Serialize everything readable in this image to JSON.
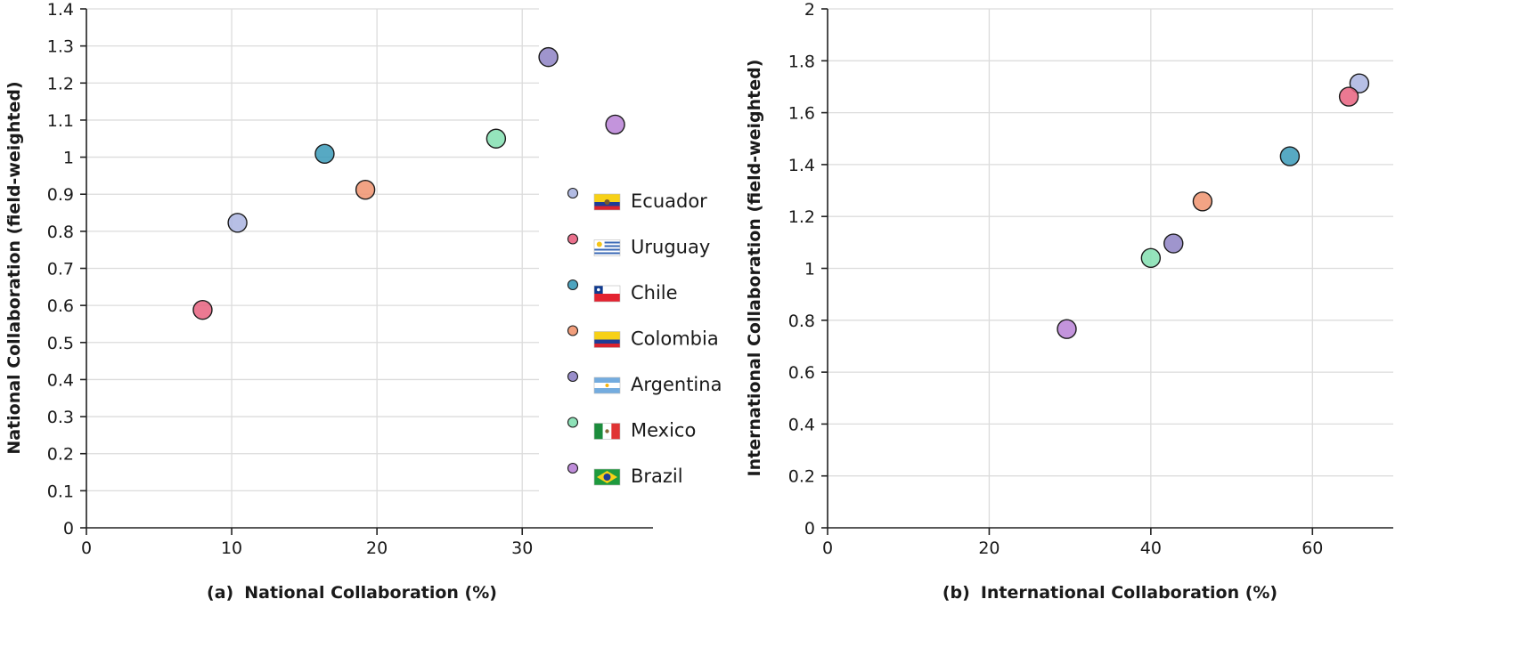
{
  "chart_data": [
    {
      "type": "scatter",
      "caption_label": "(a)",
      "caption": "National Collaboration (%)",
      "ylabel": "National Collaboration (field-weighted)",
      "xlim": [
        0,
        39
      ],
      "ylim": [
        0,
        1.4
      ],
      "xticks": [
        0,
        10,
        20,
        30
      ],
      "xtick_labels": [
        "0",
        "10",
        "20",
        "30"
      ],
      "yticks": [
        0,
        0.1,
        0.2,
        0.3,
        0.4,
        0.5,
        0.6,
        0.7,
        0.8,
        0.9,
        1,
        1.1,
        1.2,
        1.3,
        1.4
      ],
      "ytick_labels": [
        "0",
        "0.1",
        "0.2",
        "0.3",
        "0.4",
        "0.5",
        "0.6",
        "0.7",
        "0.8",
        "0.9",
        "1",
        "1.1",
        "1.2",
        "1.3",
        "1.4"
      ],
      "grid": true,
      "legend_placement": "right",
      "series": [
        {
          "name": "Ecuador",
          "color": "#aab4e0",
          "x": 10.4,
          "y": 0.823
        },
        {
          "name": "Uruguay",
          "color": "#e8617f",
          "x": 8.0,
          "y": 0.588
        },
        {
          "name": "Chile",
          "color": "#3a9ab8",
          "x": 16.4,
          "y": 1.009
        },
        {
          "name": "Colombia",
          "color": "#f0936e",
          "x": 19.2,
          "y": 0.912
        },
        {
          "name": "Argentina",
          "color": "#8e82c4",
          "x": 31.8,
          "y": 1.27
        },
        {
          "name": "Mexico",
          "color": "#82dfb0",
          "x": 28.2,
          "y": 1.05
        },
        {
          "name": "Brazil",
          "color": "#b881d6",
          "x": 36.4,
          "y": 1.088
        }
      ]
    },
    {
      "type": "scatter",
      "caption_label": "(b)",
      "caption": "International Collaboration (%)",
      "ylabel": "International Collaboration (field-weighted)",
      "xlim": [
        0,
        70
      ],
      "ylim": [
        0,
        2
      ],
      "xticks": [
        0,
        20,
        40,
        60
      ],
      "xtick_labels": [
        "0",
        "20",
        "40",
        "60"
      ],
      "yticks": [
        0,
        0.2,
        0.4,
        0.6,
        0.8,
        1,
        1.2,
        1.4,
        1.6,
        1.8,
        2
      ],
      "ytick_labels": [
        "0",
        "0.2",
        "0.4",
        "0.6",
        "0.8",
        "1",
        "1.2",
        "1.4",
        "1.6",
        "1.8",
        "2"
      ],
      "grid": true,
      "series": [
        {
          "name": "Ecuador",
          "color": "#aab4e0",
          "x": 65.8,
          "y": 1.713
        },
        {
          "name": "Uruguay",
          "color": "#e8617f",
          "x": 64.5,
          "y": 1.662
        },
        {
          "name": "Chile",
          "color": "#3a9ab8",
          "x": 57.2,
          "y": 1.432
        },
        {
          "name": "Colombia",
          "color": "#f0936e",
          "x": 46.4,
          "y": 1.258
        },
        {
          "name": "Argentina",
          "color": "#8e82c4",
          "x": 42.8,
          "y": 1.096
        },
        {
          "name": "Mexico",
          "color": "#82dfb0",
          "x": 40.0,
          "y": 1.04
        },
        {
          "name": "Brazil",
          "color": "#b881d6",
          "x": 29.6,
          "y": 0.766
        }
      ]
    }
  ],
  "legend": {
    "flag_icons": [
      "ecuador-flag-icon",
      "uruguay-flag-icon",
      "chile-flag-icon",
      "colombia-flag-icon",
      "argentina-flag-icon",
      "mexico-flag-icon",
      "brazil-flag-icon"
    ]
  }
}
